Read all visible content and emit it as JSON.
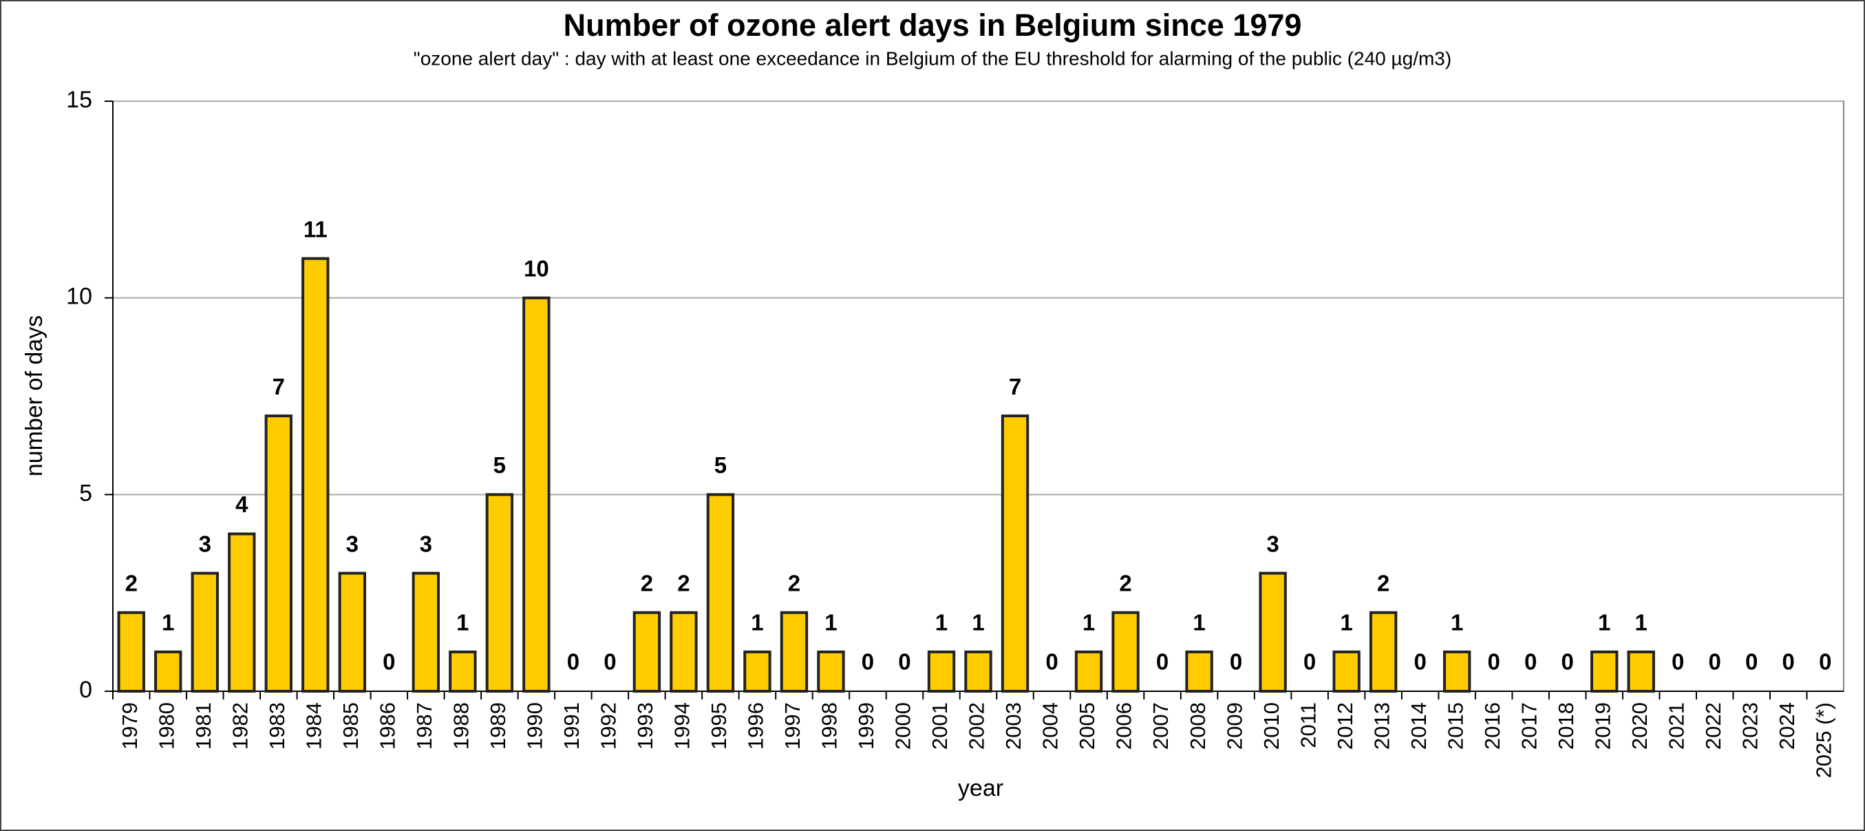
{
  "chart_data": {
    "type": "bar",
    "title": "Number of ozone alert days in Belgium since 1979",
    "subtitle": "\"ozone alert day\" : day with at least one exceedance  in Belgium of the EU threshold for alarming of the  public (240 µg/m3)",
    "x_label": "year",
    "y_label": "number of days",
    "categories": [
      "1979",
      "1980",
      "1981",
      "1982",
      "1983",
      "1984",
      "1985",
      "1986",
      "1987",
      "1988",
      "1989",
      "1990",
      "1991",
      "1992",
      "1993",
      "1994",
      "1995",
      "1996",
      "1997",
      "1998",
      "1999",
      "2000",
      "2001",
      "2002",
      "2003",
      "2004",
      "2005",
      "2006",
      "2007",
      "2008",
      "2009",
      "2010",
      "2011",
      "2012",
      "2013",
      "2014",
      "2015",
      "2016",
      "2017",
      "2018",
      "2019",
      "2020",
      "2021",
      "2022",
      "2023",
      "2024",
      "2025 (*)"
    ],
    "values": [
      2,
      1,
      3,
      4,
      7,
      11,
      3,
      0,
      3,
      1,
      5,
      10,
      0,
      0,
      2,
      2,
      5,
      1,
      2,
      1,
      0,
      0,
      1,
      1,
      7,
      0,
      1,
      2,
      0,
      1,
      0,
      3,
      0,
      1,
      2,
      0,
      1,
      0,
      0,
      0,
      1,
      1,
      0,
      0,
      0,
      0,
      0
    ],
    "color": "#ffcc00",
    "label_color": "#f7941d",
    "ylim": [
      0,
      15
    ],
    "yticks": [
      0,
      5,
      10,
      15
    ],
    "grid": true
  }
}
